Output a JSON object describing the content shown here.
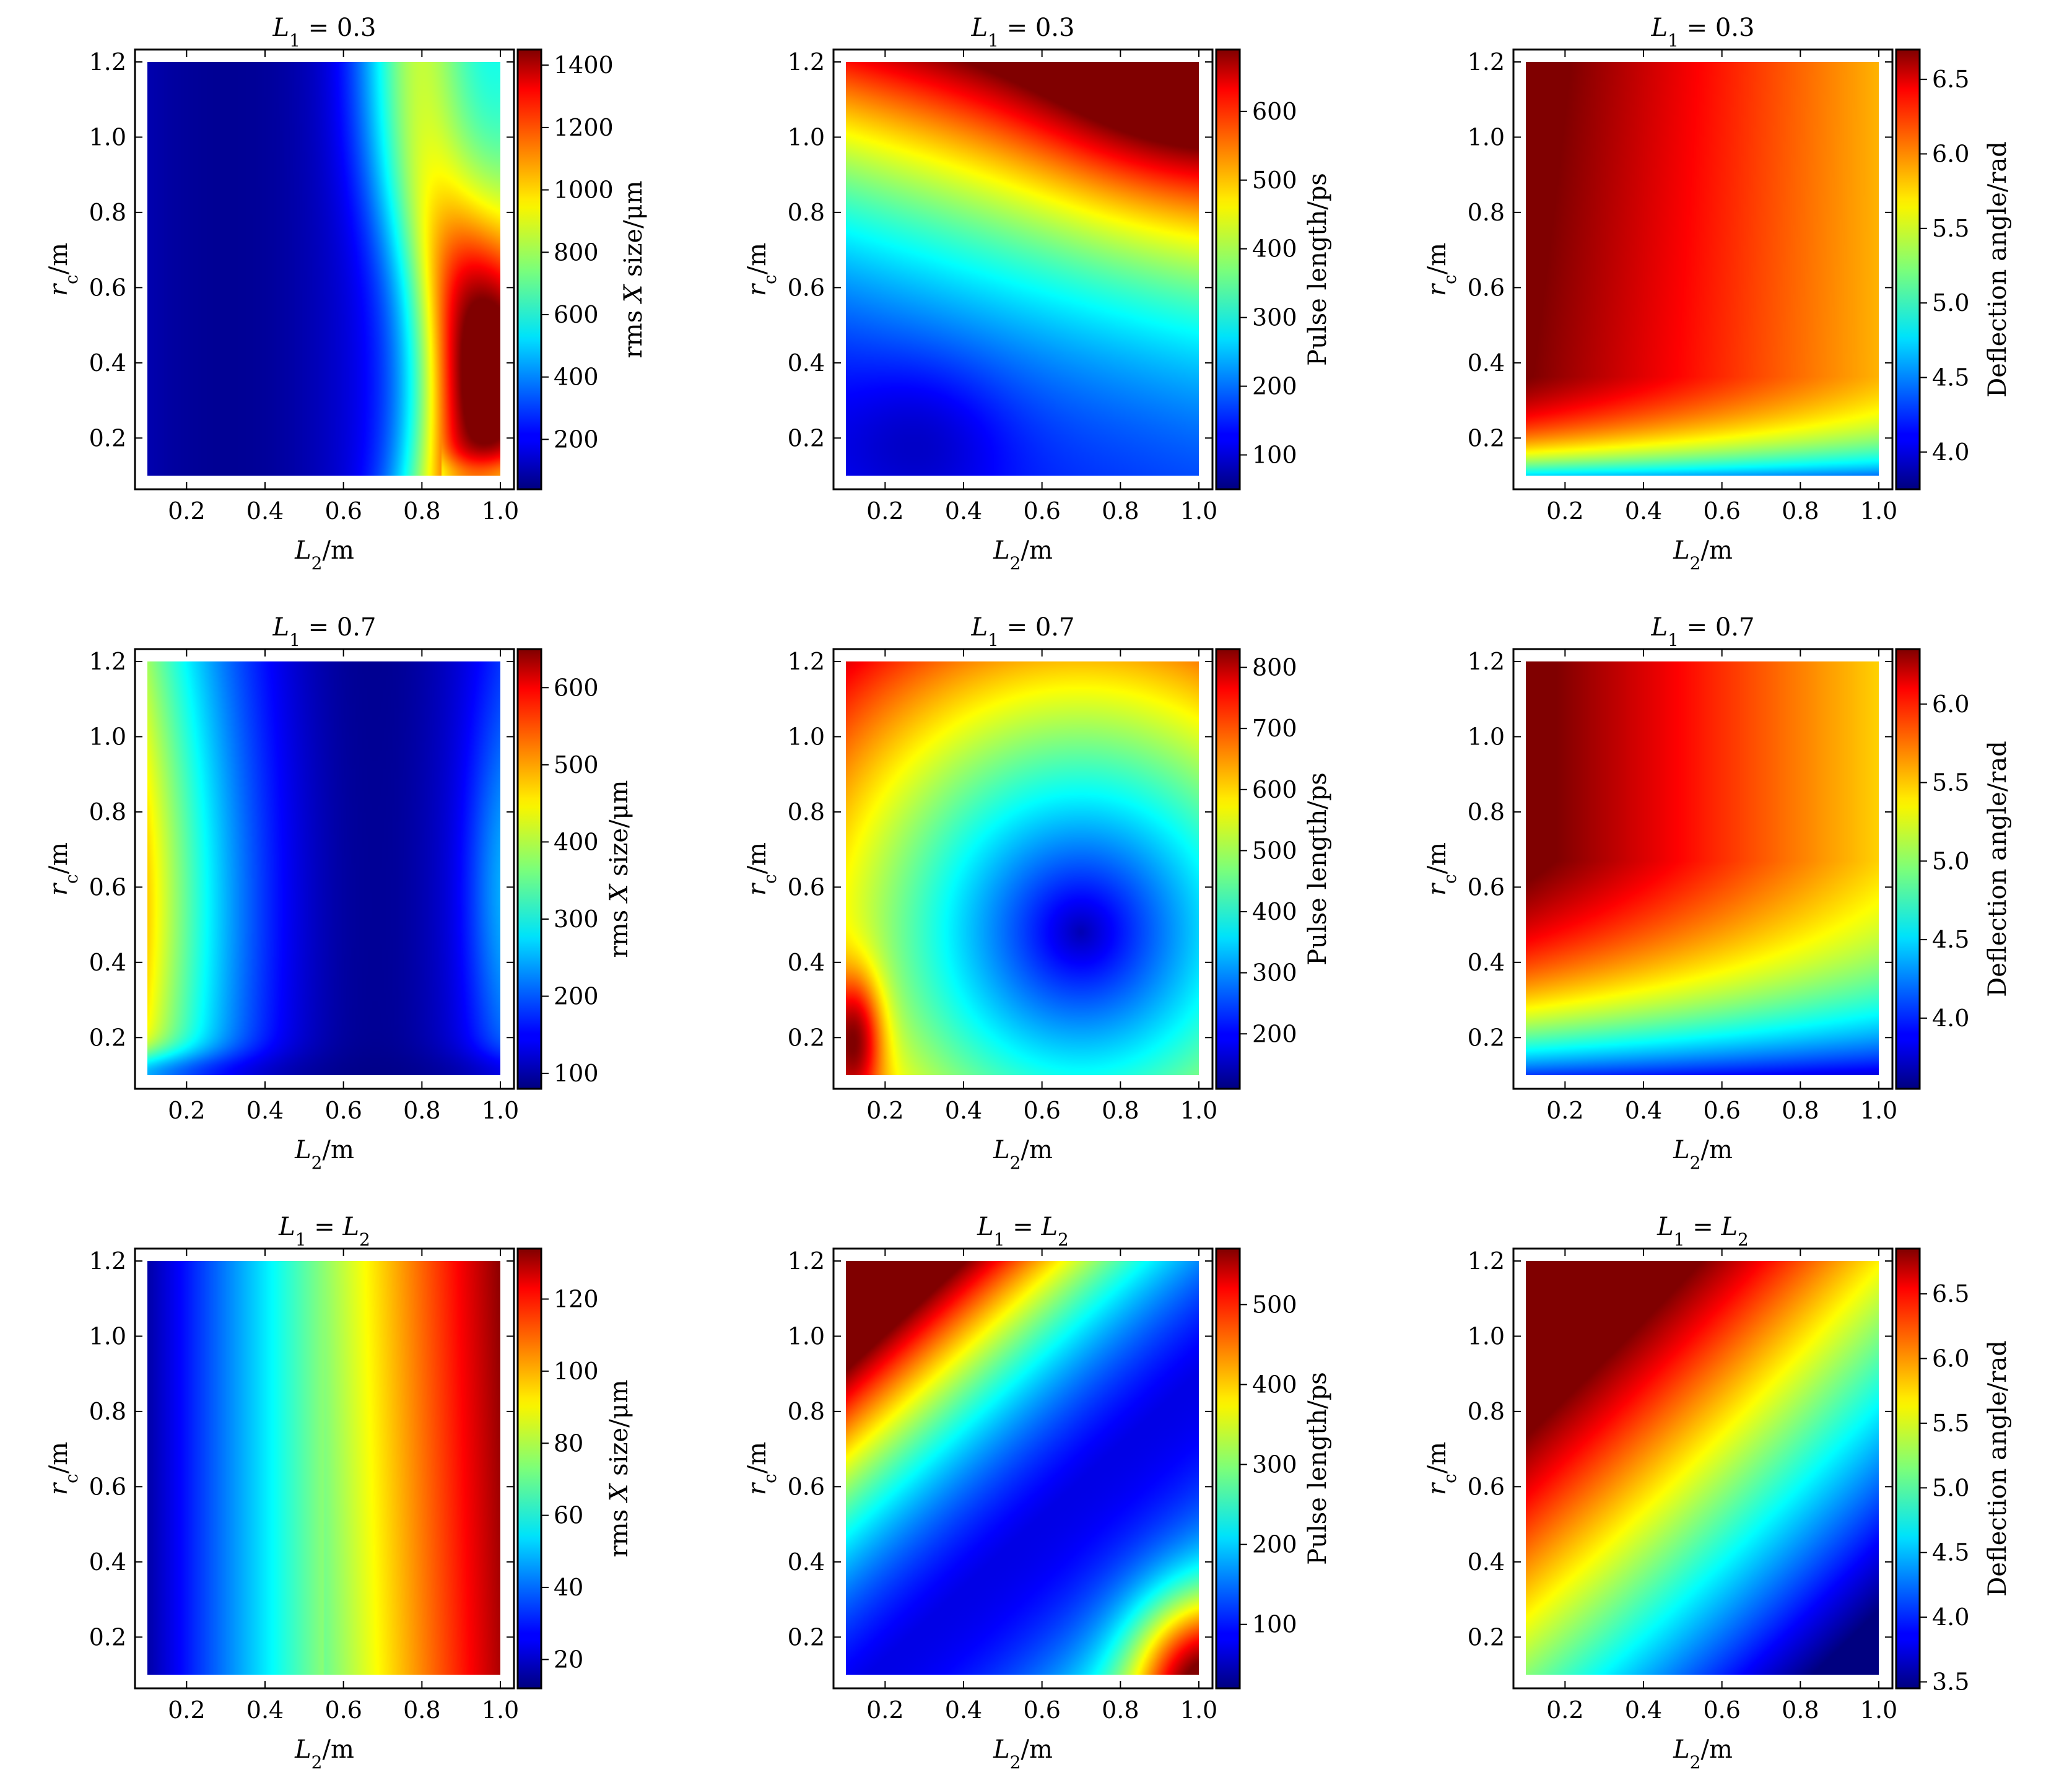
{
  "figure": {
    "colormap": "jet",
    "panel_backgrounds": "white",
    "x_label_italic": "L",
    "x_label_sub": "2",
    "x_label_unit": "/m",
    "y_label_italic": "r",
    "y_label_sub": "c",
    "y_label_unit": "/m"
  },
  "chart_data": [
    {
      "type": "heatmap",
      "title": "L₁ = 0.3",
      "title_parts": [
        "L",
        "1",
        " = 0.3"
      ],
      "xlabel": "L₂/m",
      "ylabel": "r_c/m",
      "xlim": [
        0.1,
        1.0
      ],
      "ylim": [
        0.1,
        1.2
      ],
      "xticks": [
        "0.2",
        "0.4",
        "0.6",
        "0.8",
        "1.0"
      ],
      "yticks": [
        "0.2",
        "0.4",
        "0.6",
        "0.8",
        "1.0",
        "1.2"
      ],
      "colorbar_label": "rms X size/μm",
      "colorbar_range": [
        40,
        1450
      ],
      "colorbar_ticks": [
        "200",
        "400",
        "600",
        "800",
        "1000",
        "1200",
        "1400"
      ],
      "field": "rmsA",
      "description_min": "≈40 near L₂ = 0.3",
      "description_max": "≈1450 near L₂ = 1.0, r_c = 0.35"
    },
    {
      "type": "heatmap",
      "title": "L₁ = 0.3",
      "title_parts": [
        "L",
        "1",
        " = 0.3"
      ],
      "xlabel": "L₂/m",
      "ylabel": "r_c/m",
      "xlim": [
        0.1,
        1.0
      ],
      "ylim": [
        0.1,
        1.2
      ],
      "xticks": [
        "0.2",
        "0.4",
        "0.6",
        "0.8",
        "1.0"
      ],
      "yticks": [
        "0.2",
        "0.4",
        "0.6",
        "0.8",
        "1.0",
        "1.2"
      ],
      "colorbar_label": "Pulse length/ps",
      "colorbar_range": [
        50,
        690
      ],
      "colorbar_ticks": [
        "100",
        "200",
        "300",
        "400",
        "500",
        "600"
      ],
      "field": "pulseA"
    },
    {
      "type": "heatmap",
      "title": "L₁ = 0.3",
      "title_parts": [
        "L",
        "1",
        " = 0.3"
      ],
      "xlabel": "L₂/m",
      "ylabel": "r_c/m",
      "xlim": [
        0.1,
        1.0
      ],
      "ylim": [
        0.1,
        1.2
      ],
      "xticks": [
        "0.2",
        "0.4",
        "0.6",
        "0.8",
        "1.0"
      ],
      "yticks": [
        "0.2",
        "0.4",
        "0.6",
        "0.8",
        "1.0",
        "1.2"
      ],
      "colorbar_label": "Deflection angle/rad",
      "colorbar_range": [
        3.75,
        6.7
      ],
      "colorbar_ticks": [
        "4.0",
        "4.5",
        "5.0",
        "5.5",
        "6.0",
        "6.5"
      ],
      "field": "deflA"
    },
    {
      "type": "heatmap",
      "title": "L₁ = 0.7",
      "title_parts": [
        "L",
        "1",
        " = 0.7"
      ],
      "xlabel": "L₂/m",
      "ylabel": "r_c/m",
      "xlim": [
        0.1,
        1.0
      ],
      "ylim": [
        0.1,
        1.2
      ],
      "xticks": [
        "0.2",
        "0.4",
        "0.6",
        "0.8",
        "1.0"
      ],
      "yticks": [
        "0.2",
        "0.4",
        "0.6",
        "0.8",
        "1.0",
        "1.2"
      ],
      "colorbar_label": "rms X size/μm",
      "colorbar_range": [
        80,
        650
      ],
      "colorbar_ticks": [
        "100",
        "200",
        "300",
        "400",
        "500",
        "600"
      ],
      "field": "rmsB"
    },
    {
      "type": "heatmap",
      "title": "L₁ = 0.7",
      "title_parts": [
        "L",
        "1",
        " = 0.7"
      ],
      "xlabel": "L₂/m",
      "ylabel": "r_c/m",
      "xlim": [
        0.1,
        1.0
      ],
      "ylim": [
        0.1,
        1.2
      ],
      "xticks": [
        "0.2",
        "0.4",
        "0.6",
        "0.8",
        "1.0"
      ],
      "yticks": [
        "0.2",
        "0.4",
        "0.6",
        "0.8",
        "1.0",
        "1.2"
      ],
      "colorbar_label": "Pulse length/ps",
      "colorbar_range": [
        110,
        830
      ],
      "colorbar_ticks": [
        "200",
        "300",
        "400",
        "500",
        "600",
        "700",
        "800"
      ],
      "field": "pulseB"
    },
    {
      "type": "heatmap",
      "title": "L₁ = 0.7",
      "title_parts": [
        "L",
        "1",
        " = 0.7"
      ],
      "xlabel": "L₂/m",
      "ylabel": "r_c/m",
      "xlim": [
        0.1,
        1.0
      ],
      "ylim": [
        0.1,
        1.2
      ],
      "xticks": [
        "0.2",
        "0.4",
        "0.6",
        "0.8",
        "1.0"
      ],
      "yticks": [
        "0.2",
        "0.4",
        "0.6",
        "0.8",
        "1.0",
        "1.2"
      ],
      "colorbar_label": "Deflection angle/rad",
      "colorbar_range": [
        3.55,
        6.35
      ],
      "colorbar_ticks": [
        "4.0",
        "4.5",
        "5.0",
        "5.5",
        "6.0"
      ],
      "field": "deflB"
    },
    {
      "type": "heatmap",
      "title": "L₁ = L₂",
      "title_parts": [
        "L",
        "1",
        " = ",
        "L",
        "2"
      ],
      "xlabel": "L₂/m",
      "ylabel": "r_c/m",
      "xlim": [
        0.1,
        1.0
      ],
      "ylim": [
        0.1,
        1.2
      ],
      "xticks": [
        "0.2",
        "0.4",
        "0.6",
        "0.8",
        "1.0"
      ],
      "yticks": [
        "0.2",
        "0.4",
        "0.6",
        "0.8",
        "1.0",
        "1.2"
      ],
      "colorbar_label": "rms X size/μm",
      "colorbar_range": [
        12,
        134
      ],
      "colorbar_ticks": [
        "20",
        "40",
        "60",
        "80",
        "100",
        "120"
      ],
      "field": "rmsC"
    },
    {
      "type": "heatmap",
      "title": "L₁ = L₂",
      "title_parts": [
        "L",
        "1",
        " = ",
        "L",
        "2"
      ],
      "xlabel": "L₂/m",
      "ylabel": "r_c/m",
      "xlim": [
        0.1,
        1.0
      ],
      "ylim": [
        0.1,
        1.2
      ],
      "xticks": [
        "0.2",
        "0.4",
        "0.6",
        "0.8",
        "1.0"
      ],
      "yticks": [
        "0.2",
        "0.4",
        "0.6",
        "0.8",
        "1.0",
        "1.2"
      ],
      "colorbar_label": "Pulse length/ps",
      "colorbar_range": [
        20,
        570
      ],
      "colorbar_ticks": [
        "100",
        "200",
        "300",
        "400",
        "500"
      ],
      "field": "pulseC"
    },
    {
      "type": "heatmap",
      "title": "L₁ = L₂",
      "title_parts": [
        "L",
        "1",
        " = ",
        "L",
        "2"
      ],
      "xlabel": "L₂/m",
      "ylabel": "r_c/m",
      "xlim": [
        0.1,
        1.0
      ],
      "ylim": [
        0.1,
        1.2
      ],
      "xticks": [
        "0.2",
        "0.4",
        "0.6",
        "0.8",
        "1.0"
      ],
      "yticks": [
        "0.2",
        "0.4",
        "0.6",
        "0.8",
        "1.0",
        "1.2"
      ],
      "colorbar_label": "Deflection angle/rad",
      "colorbar_range": [
        3.45,
        6.85
      ],
      "colorbar_ticks": [
        "3.5",
        "4.0",
        "4.5",
        "5.0",
        "5.5",
        "6.0",
        "6.5"
      ],
      "field": "deflC"
    }
  ]
}
